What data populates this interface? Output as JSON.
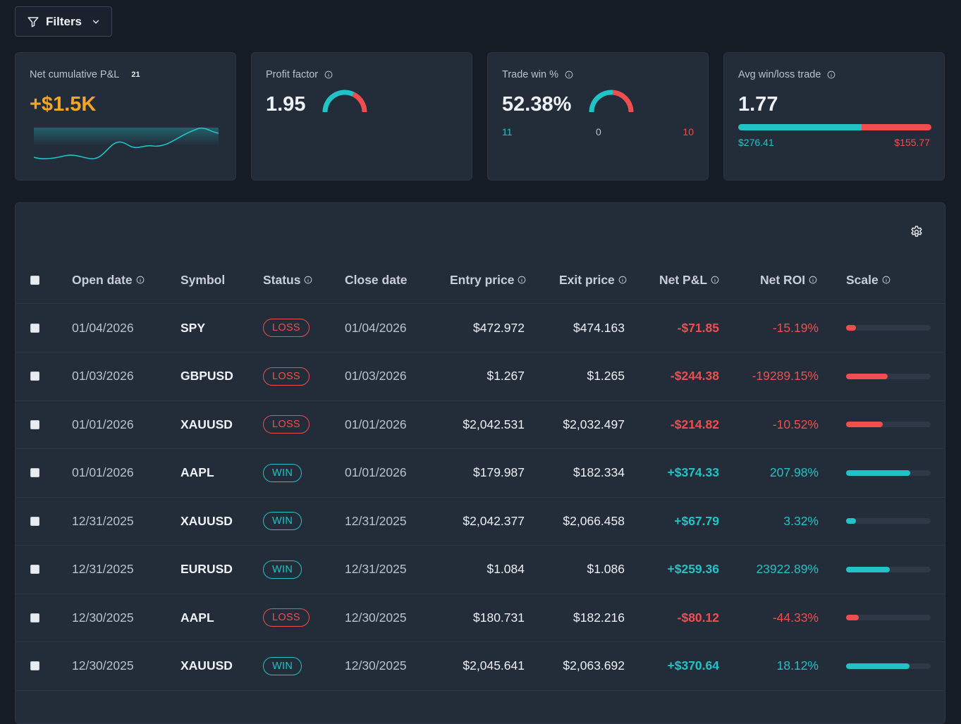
{
  "filters": {
    "label": "Filters"
  },
  "cards": {
    "net_pnl": {
      "label": "Net cumulative P&L",
      "badge": "21",
      "value": "+$1.5K"
    },
    "profit_factor": {
      "label": "Profit factor",
      "value": "1.95"
    },
    "trade_win": {
      "label": "Trade win %",
      "value": "52.38%",
      "wins": "11",
      "breakeven": "0",
      "losses": "10"
    },
    "avg_win_loss": {
      "label": "Avg win/loss trade",
      "value": "1.77",
      "avg_win": "$276.41",
      "avg_loss": "$155.77"
    }
  },
  "colors": {
    "teal": "#22c3c6",
    "red": "#f04e4e",
    "orange": "#f5a524"
  },
  "table": {
    "headers": {
      "open_date": "Open date",
      "symbol": "Symbol",
      "status": "Status",
      "close_date": "Close date",
      "entry_price": "Entry price",
      "exit_price": "Exit price",
      "net_pnl": "Net P&L",
      "net_roi": "Net ROI",
      "scale": "Scale"
    },
    "rows": [
      {
        "open_date": "01/04/2026",
        "symbol": "SPY",
        "status": "LOSS",
        "close_date": "01/04/2026",
        "entry": "$472.972",
        "exit": "$474.163",
        "pnl": "-$71.85",
        "roi": "-15.19%",
        "scale": 0.12
      },
      {
        "open_date": "01/03/2026",
        "symbol": "GBPUSD",
        "status": "LOSS",
        "close_date": "01/03/2026",
        "entry": "$1.267",
        "exit": "$1.265",
        "pnl": "-$244.38",
        "roi": "-19289.15%",
        "scale": 0.49
      },
      {
        "open_date": "01/01/2026",
        "symbol": "XAUUSD",
        "status": "LOSS",
        "close_date": "01/01/2026",
        "entry": "$2,042.531",
        "exit": "$2,032.497",
        "pnl": "-$214.82",
        "roi": "-10.52%",
        "scale": 0.43
      },
      {
        "open_date": "01/01/2026",
        "symbol": "AAPL",
        "status": "WIN",
        "close_date": "01/01/2026",
        "entry": "$179.987",
        "exit": "$182.334",
        "pnl": "+$374.33",
        "roi": "207.98%",
        "scale": 0.76
      },
      {
        "open_date": "12/31/2025",
        "symbol": "XAUUSD",
        "status": "WIN",
        "close_date": "12/31/2025",
        "entry": "$2,042.377",
        "exit": "$2,066.458",
        "pnl": "+$67.79",
        "roi": "3.32%",
        "scale": 0.12
      },
      {
        "open_date": "12/31/2025",
        "symbol": "EURUSD",
        "status": "WIN",
        "close_date": "12/31/2025",
        "entry": "$1.084",
        "exit": "$1.086",
        "pnl": "+$259.36",
        "roi": "23922.89%",
        "scale": 0.52
      },
      {
        "open_date": "12/30/2025",
        "symbol": "AAPL",
        "status": "LOSS",
        "close_date": "12/30/2025",
        "entry": "$180.731",
        "exit": "$182.216",
        "pnl": "-$80.12",
        "roi": "-44.33%",
        "scale": 0.15
      },
      {
        "open_date": "12/30/2025",
        "symbol": "XAUUSD",
        "status": "WIN",
        "close_date": "12/30/2025",
        "entry": "$2,045.641",
        "exit": "$2,063.692",
        "pnl": "+$370.64",
        "roi": "18.12%",
        "scale": 0.75
      }
    ]
  }
}
